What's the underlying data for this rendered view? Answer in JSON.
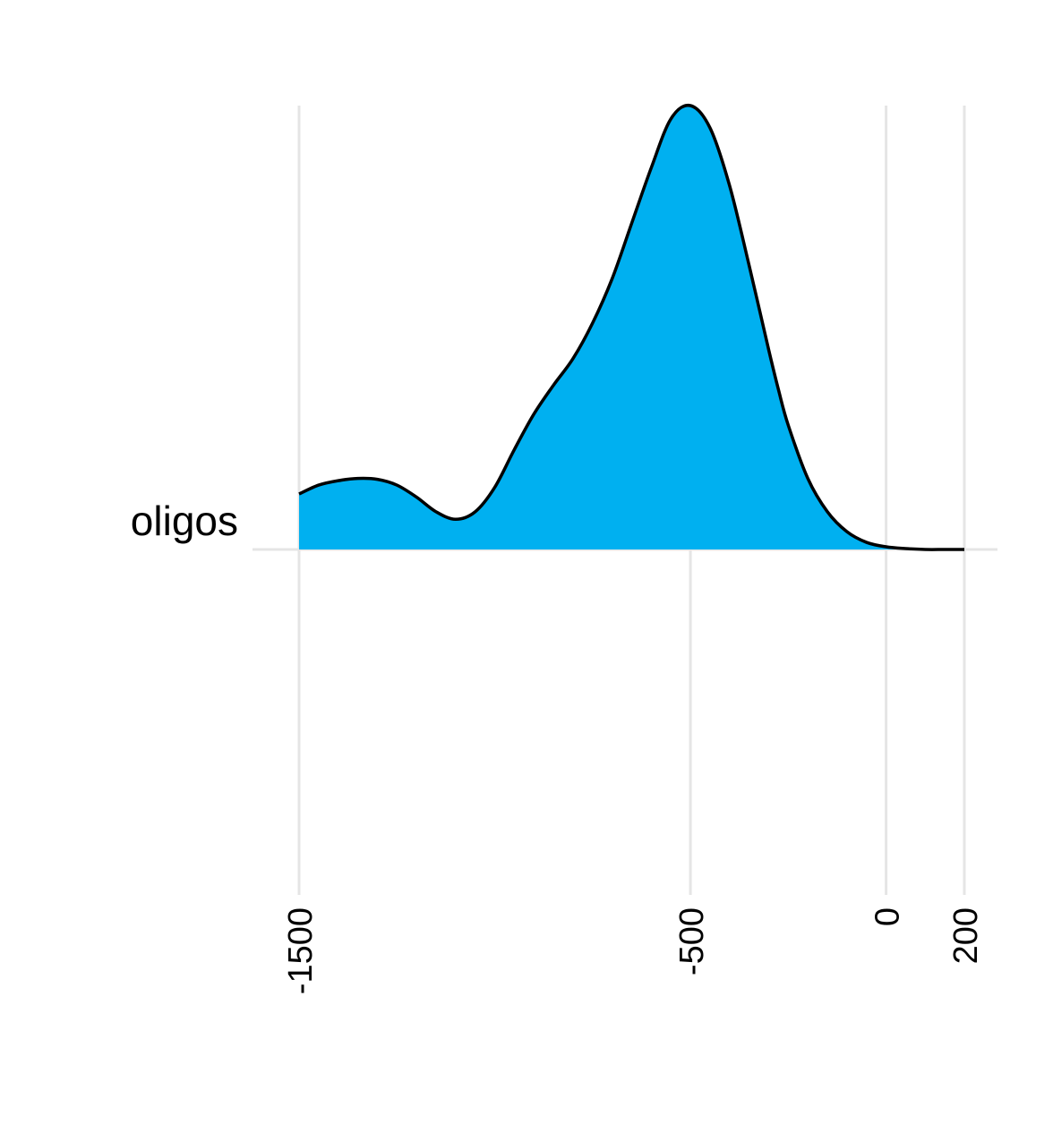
{
  "chart_data": {
    "type": "area",
    "subtype": "ridgeline-density",
    "title": "",
    "xlabel": "",
    "ylabel": "",
    "x_ticks": [
      -1500,
      -500,
      0,
      200
    ],
    "x_tick_labels": [
      "-1500",
      "-500",
      "0",
      "200"
    ],
    "xlim": [
      -1500,
      200
    ],
    "grid": true,
    "fill_color": "#00b0f0",
    "line_color": "#000000",
    "grid_color": "#e5e5e5",
    "categories": [
      "oligos"
    ],
    "series": [
      {
        "category": "oligos",
        "density_relative": {
          "x": [
            -1500,
            -1450,
            -1400,
            -1350,
            -1300,
            -1250,
            -1200,
            -1150,
            -1100,
            -1050,
            -1000,
            -950,
            -900,
            -850,
            -800,
            -750,
            -700,
            -650,
            -600,
            -550,
            -500,
            -450,
            -400,
            -350,
            -300,
            -275,
            -250,
            -200,
            -150,
            -100,
            -50,
            0,
            50,
            100,
            150,
            200
          ],
          "y": [
            0.125,
            0.145,
            0.155,
            0.16,
            0.158,
            0.145,
            0.118,
            0.085,
            0.068,
            0.085,
            0.14,
            0.225,
            0.305,
            0.37,
            0.43,
            0.51,
            0.61,
            0.735,
            0.86,
            0.97,
            1.0,
            0.95,
            0.82,
            0.64,
            0.45,
            0.36,
            0.28,
            0.16,
            0.085,
            0.04,
            0.016,
            0.006,
            0.002,
            0.0,
            0.0,
            0.0
          ]
        }
      }
    ]
  }
}
